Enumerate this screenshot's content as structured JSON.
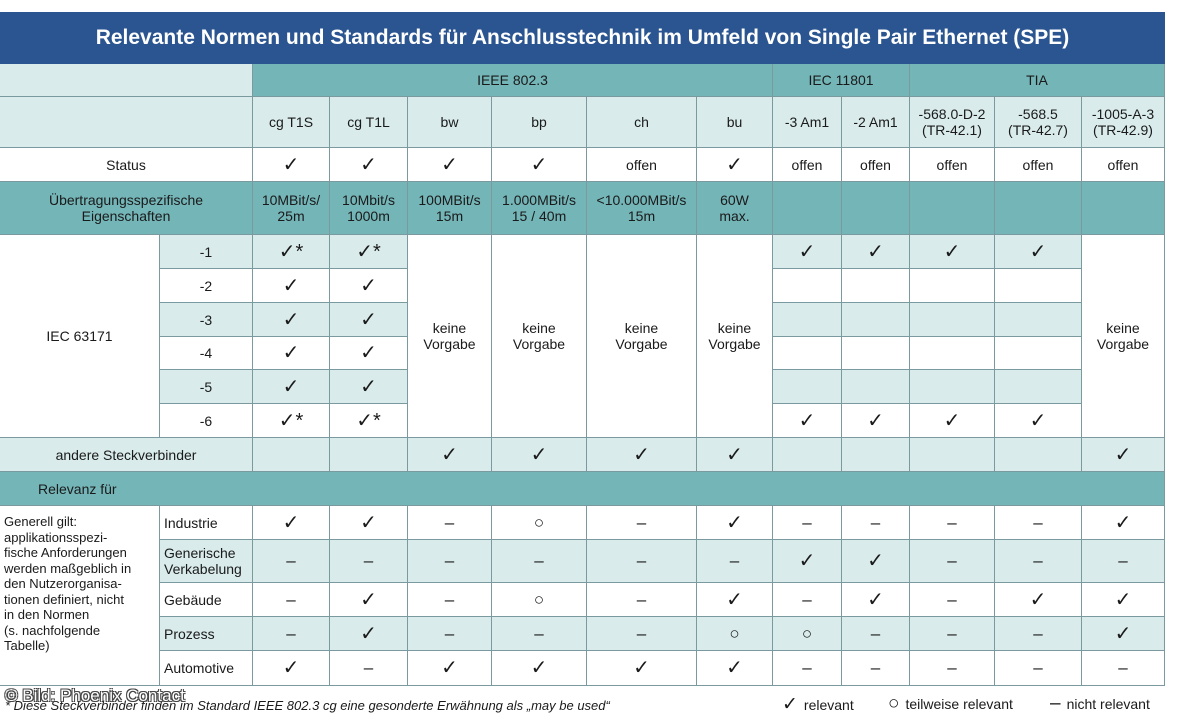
{
  "title": "Relevante Normen und Standards für Anschlusstechnik im Umfeld von Single Pair Ethernet (SPE)",
  "groups": [
    "IEEE 802.3",
    "IEC 11801",
    "TIA"
  ],
  "columns": [
    [
      "cg T1S"
    ],
    [
      "cg T1L"
    ],
    [
      "bw"
    ],
    [
      "bp"
    ],
    [
      "ch"
    ],
    [
      "bu"
    ],
    [
      "-3 Am1"
    ],
    [
      "-2 Am1"
    ],
    [
      "-568.0-D-2",
      "(TR-42.1)"
    ],
    [
      "-568.5",
      "(TR-42.7)"
    ],
    [
      "-1005-A-3",
      "(TR-42.9)"
    ]
  ],
  "status": {
    "label": "Status",
    "values": [
      "✓",
      "✓",
      "✓",
      "✓",
      "offen",
      "✓",
      "offen",
      "offen",
      "offen",
      "offen",
      "offen"
    ]
  },
  "transfer": {
    "label": [
      "Übertragungsspezifische",
      "Eigenschaften"
    ],
    "values": [
      [
        "10MBit/s/",
        "25m"
      ],
      [
        "10Mbit/s",
        "1000m"
      ],
      [
        "100MBit/s",
        "15m"
      ],
      [
        "1.000MBit/s",
        "15 / 40m"
      ],
      [
        "<10.000MBit/s",
        "15m"
      ],
      [
        "60W",
        "max."
      ],
      [],
      [],
      [],
      [],
      []
    ]
  },
  "iec63171": {
    "label": "IEC 63171",
    "subs": [
      "-1",
      "-2",
      "-3",
      "-4",
      "-5",
      "-6"
    ],
    "t1s": [
      "✓*",
      "✓",
      "✓",
      "✓",
      "✓",
      "✓*"
    ],
    "t1l": [
      "✓*",
      "✓",
      "✓",
      "✓",
      "✓",
      "✓*"
    ],
    "iec_tia": [
      [
        "✓",
        "✓",
        "✓",
        "✓"
      ],
      [
        "",
        "",
        "",
        ""
      ],
      [
        "",
        "",
        "",
        ""
      ],
      [
        "",
        "",
        "",
        ""
      ],
      [
        "",
        "",
        "",
        ""
      ],
      [
        "✓",
        "✓",
        "✓",
        "✓"
      ]
    ],
    "keine": [
      "keine",
      "Vorgabe"
    ]
  },
  "andere": {
    "label": "andere Steckverbinder",
    "values": [
      "",
      "",
      "✓",
      "✓",
      "✓",
      "✓",
      "",
      "",
      "",
      "",
      "✓"
    ]
  },
  "relevanz": {
    "label": "Relevanz für",
    "note": [
      "Generell gilt:",
      "applikationsspezi-",
      "fische Anforderungen",
      "werden maßgeblich in",
      "den Nutzerorganisa-",
      "tionen definiert, nicht",
      "in den Normen",
      "(s. nachfolgende",
      "Tabelle)"
    ],
    "rows": [
      {
        "label": [
          "Industrie"
        ],
        "values": [
          "✓",
          "✓",
          "–",
          "○",
          "–",
          "✓",
          "–",
          "–",
          "–",
          "–",
          "✓"
        ]
      },
      {
        "label": [
          "Generische",
          "Verkabelung"
        ],
        "values": [
          "–",
          "–",
          "–",
          "–",
          "–",
          "–",
          "✓",
          "✓",
          "–",
          "–",
          "–"
        ]
      },
      {
        "label": [
          "Gebäude"
        ],
        "values": [
          "–",
          "✓",
          "–",
          "○",
          "–",
          "✓",
          "–",
          "✓",
          "–",
          "✓",
          "✓"
        ]
      },
      {
        "label": [
          "Prozess"
        ],
        "values": [
          "–",
          "✓",
          "–",
          "–",
          "–",
          "○",
          "○",
          "–",
          "–",
          "–",
          "✓"
        ]
      },
      {
        "label": [
          "Automotive"
        ],
        "values": [
          "✓",
          "–",
          "✓",
          "✓",
          "✓",
          "✓",
          "–",
          "–",
          "–",
          "–",
          "–"
        ]
      }
    ]
  },
  "footnote": "* Diese Steckverbinder finden im Standard IEEE 802.3 cg eine gesonderte Erwähnung als „may be used“",
  "credit": "© Bild: Phoenix Contact",
  "legend": [
    {
      "symbol": "✓",
      "label": "relevant"
    },
    {
      "symbol": "○",
      "label": "teilweise relevant"
    },
    {
      "symbol": "–",
      "label": "nicht relevant"
    }
  ]
}
